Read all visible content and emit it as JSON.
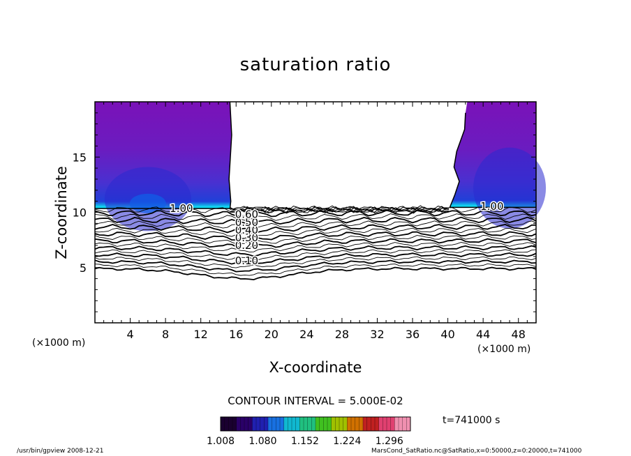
{
  "chart_data": {
    "type": "contour",
    "title": "saturation ratio",
    "xlabel": "X-coordinate",
    "ylabel": "Z-coordinate",
    "x_unit_left": "(×1000 m)",
    "x_unit_right": "(×1000 m)",
    "xlim": [
      0,
      50
    ],
    "ylim": [
      0,
      20
    ],
    "x_ticks": [
      4,
      8,
      12,
      16,
      20,
      24,
      28,
      32,
      36,
      40,
      44,
      48
    ],
    "y_ticks": [
      5,
      10,
      15
    ],
    "contour_interval_text": "CONTOUR INTERVAL = 5.000E-02",
    "contour_labels": [
      {
        "text": "0.10",
        "x": 17.2,
        "z": 5.6
      },
      {
        "text": "0.20",
        "x": 17.2,
        "z": 7.0
      },
      {
        "text": "0.30",
        "x": 17.2,
        "z": 7.7
      },
      {
        "text": "0.40",
        "x": 17.2,
        "z": 8.4
      },
      {
        "text": "0.50",
        "x": 17.2,
        "z": 9.1
      },
      {
        "text": "0.60",
        "x": 17.2,
        "z": 9.8
      },
      {
        "text": "1.00",
        "x": 9.8,
        "z": 10.35
      },
      {
        "text": "1.00",
        "x": 45.0,
        "z": 10.55
      }
    ],
    "isoline_levels": [
      0.1,
      0.15,
      0.2,
      0.25,
      0.3,
      0.35,
      0.4,
      0.45,
      0.5,
      0.55,
      0.6,
      0.65,
      0.7,
      0.75,
      0.8,
      0.85,
      0.9,
      0.95
    ],
    "shaded_regions": [
      {
        "name": "supersaturated-left",
        "x_range": [
          0,
          15.3
        ],
        "z_range": [
          10.3,
          20
        ]
      },
      {
        "name": "supersaturated-right",
        "x_range": [
          40.2,
          50
        ],
        "z_range": [
          10.4,
          20
        ]
      }
    ],
    "colorbar": {
      "ticks": [
        "1.008",
        "1.080",
        "1.152",
        "1.224",
        "1.296"
      ],
      "min": 1.008,
      "max": 1.332,
      "colors": [
        "#1a0030",
        "#2a0068",
        "#2020b0",
        "#1870e0",
        "#10b8d0",
        "#20c080",
        "#40c020",
        "#a0c000",
        "#d07000",
        "#c02020",
        "#e04070",
        "#f090b0"
      ]
    },
    "time_label": "t=741000 s",
    "footer_left": "/usr/bin/gpview  2008-12-21",
    "footer_right": "MarsCond_SatRatio.nc@SatRatio,x=0:50000,z=0:20000,t=741000"
  }
}
